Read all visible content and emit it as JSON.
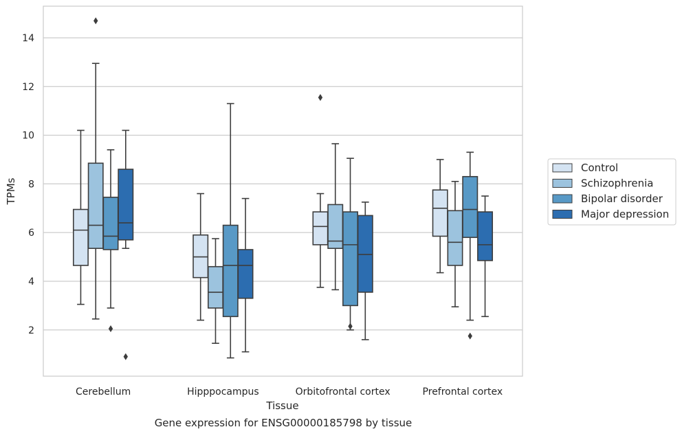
{
  "caption": "Gene expression for ENSG00000185798 by tissue",
  "chart_data": {
    "type": "box",
    "title": "",
    "xlabel": "Tissue",
    "ylabel": "TPMs",
    "ylim": [
      0.1,
      15.3
    ],
    "yticks": [
      2,
      4,
      6,
      8,
      10,
      12,
      14
    ],
    "grid": "horizontal",
    "legend_position": "right",
    "categories": [
      "Cerebellum",
      "Hipppocampus",
      "Orbitofrontal cortex",
      "Prefrontal cortex"
    ],
    "series": [
      {
        "name": "Control",
        "color": "#d4e3f2",
        "boxes": [
          {
            "whislo": 3.05,
            "q1": 4.65,
            "med": 6.1,
            "q3": 6.95,
            "whishi": 10.2,
            "fliers": []
          },
          {
            "whislo": 2.4,
            "q1": 4.15,
            "med": 5.0,
            "q3": 5.9,
            "whishi": 7.6,
            "fliers": []
          },
          {
            "whislo": 3.75,
            "q1": 5.5,
            "med": 6.25,
            "q3": 6.85,
            "whishi": 7.6,
            "fliers": [
              11.55
            ]
          },
          {
            "whislo": 4.35,
            "q1": 5.85,
            "med": 7.0,
            "q3": 7.75,
            "whishi": 9.0,
            "fliers": []
          }
        ]
      },
      {
        "name": "Schizophrenia",
        "color": "#9cc3de",
        "boxes": [
          {
            "whislo": 2.45,
            "q1": 5.35,
            "med": 6.3,
            "q3": 8.85,
            "whishi": 12.95,
            "fliers": [
              14.7
            ]
          },
          {
            "whislo": 1.45,
            "q1": 2.9,
            "med": 3.55,
            "q3": 4.6,
            "whishi": 5.75,
            "fliers": []
          },
          {
            "whislo": 3.65,
            "q1": 5.35,
            "med": 5.65,
            "q3": 7.15,
            "whishi": 9.65,
            "fliers": []
          },
          {
            "whislo": 2.95,
            "q1": 4.65,
            "med": 5.6,
            "q3": 6.9,
            "whishi": 8.1,
            "fliers": []
          }
        ]
      },
      {
        "name": "Bipolar disorder",
        "color": "#5899c6",
        "boxes": [
          {
            "whislo": 2.9,
            "q1": 5.3,
            "med": 5.85,
            "q3": 7.45,
            "whishi": 9.4,
            "fliers": [
              2.05
            ]
          },
          {
            "whislo": 0.85,
            "q1": 2.55,
            "med": 4.65,
            "q3": 6.3,
            "whishi": 11.3,
            "fliers": []
          },
          {
            "whislo": 2.0,
            "q1": 3.0,
            "med": 5.5,
            "q3": 6.85,
            "whishi": 9.05,
            "fliers": [
              2.15
            ]
          },
          {
            "whislo": 2.4,
            "q1": 5.8,
            "med": 6.95,
            "q3": 8.3,
            "whishi": 9.3,
            "fliers": [
              1.75
            ]
          }
        ]
      },
      {
        "name": "Major depression",
        "color": "#2c6db0",
        "boxes": [
          {
            "whislo": 5.35,
            "q1": 5.7,
            "med": 6.4,
            "q3": 8.6,
            "whishi": 10.2,
            "fliers": [
              0.9
            ]
          },
          {
            "whislo": 1.1,
            "q1": 3.3,
            "med": 4.65,
            "q3": 5.3,
            "whishi": 7.4,
            "fliers": []
          },
          {
            "whislo": 1.6,
            "q1": 3.55,
            "med": 5.1,
            "q3": 6.7,
            "whishi": 7.25,
            "fliers": []
          },
          {
            "whislo": 2.55,
            "q1": 4.85,
            "med": 5.5,
            "q3": 6.85,
            "whishi": 7.5,
            "fliers": []
          }
        ]
      }
    ]
  }
}
